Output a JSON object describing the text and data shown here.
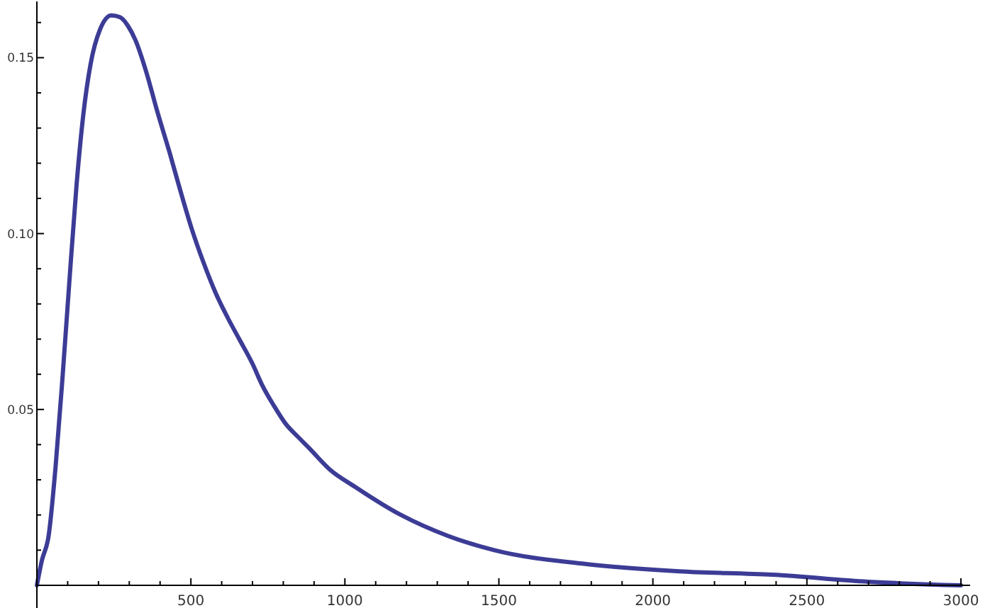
{
  "chart_data": {
    "type": "line",
    "x": [
      0,
      16,
      38,
      61,
      84,
      106,
      129,
      151,
      174,
      205,
      242,
      270,
      296,
      320,
      355,
      390,
      431,
      460,
      504,
      540,
      581,
      620,
      657,
      700,
      731,
      770,
      807,
      850,
      884,
      950,
      1033,
      1182,
      1336,
      1485,
      1788,
      2086,
      2389,
      2700,
      3000
    ],
    "series": [
      {
        "color": "#3c3c96",
        "values": [
          0,
          0.007,
          0.014,
          0.034,
          0.06,
          0.087,
          0.114,
          0.134,
          0.148,
          0.158,
          0.162,
          0.1615,
          0.159,
          0.155,
          0.146,
          0.135,
          0.123,
          0.114,
          0.101,
          0.092,
          0.083,
          0.076,
          0.07,
          0.063,
          0.057,
          0.051,
          0.046,
          0.042,
          0.039,
          0.033,
          0.028,
          0.02,
          0.014,
          0.01,
          0.006,
          0.004,
          0.003,
          0.001,
          0
        ]
      }
    ],
    "xlim": [
      0,
      3030
    ],
    "ylim": [
      0,
      0.166
    ],
    "xticks": [
      {
        "value": 100,
        "label": null
      },
      {
        "value": 200,
        "label": null
      },
      {
        "value": 300,
        "label": null
      },
      {
        "value": 400,
        "label": null
      },
      500,
      {
        "value": 600,
        "label": null
      },
      {
        "value": 700,
        "label": null
      },
      {
        "value": 800,
        "label": null
      },
      {
        "value": 900,
        "label": null
      },
      1000,
      {
        "value": 1100,
        "label": null
      },
      {
        "value": 1200,
        "label": null
      },
      {
        "value": 1300,
        "label": null
      },
      {
        "value": 1400,
        "label": null
      },
      1500,
      {
        "value": 1600,
        "label": null
      },
      {
        "value": 1700,
        "label": null
      },
      {
        "value": 1800,
        "label": null
      },
      {
        "value": 1900,
        "label": null
      },
      2000,
      {
        "value": 2100,
        "label": null
      },
      {
        "value": 2200,
        "label": null
      },
      {
        "value": 2300,
        "label": null
      },
      {
        "value": 2400,
        "label": null
      },
      2500,
      {
        "value": 2600,
        "label": null
      },
      {
        "value": 2700,
        "label": null
      },
      {
        "value": 2800,
        "label": null
      },
      {
        "value": 2900,
        "label": null
      },
      3000
    ],
    "yticks": [
      {
        "value": 0.01,
        "label": null
      },
      {
        "value": 0.02,
        "label": null
      },
      {
        "value": 0.03,
        "label": null
      },
      {
        "value": 0.04,
        "label": null
      },
      0.05,
      {
        "value": 0.06,
        "label": null
      },
      {
        "value": 0.07,
        "label": null
      },
      {
        "value": 0.08,
        "label": null
      },
      {
        "value": 0.09,
        "label": null
      },
      {
        "value": 0.1,
        "label": "0.10"
      },
      {
        "value": 0.11,
        "label": null
      },
      {
        "value": 0.12,
        "label": null
      },
      {
        "value": 0.13,
        "label": null
      },
      {
        "value": 0.14,
        "label": null
      },
      0.15,
      {
        "value": 0.16,
        "label": null
      }
    ],
    "grid": false,
    "marker": "none",
    "line_style": "solid"
  }
}
